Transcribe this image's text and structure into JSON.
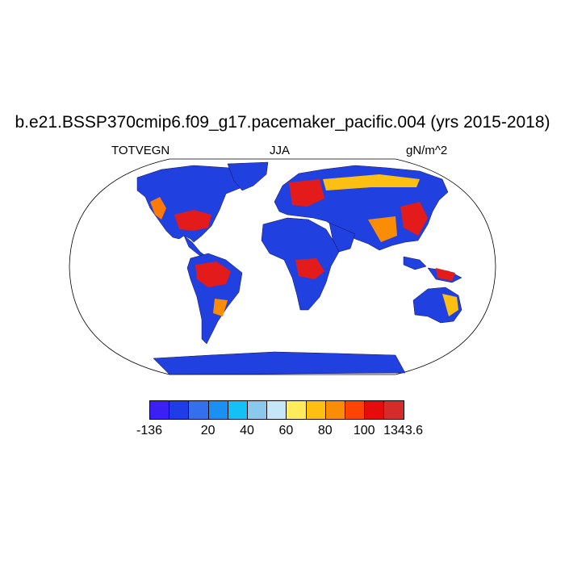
{
  "title": "b.e21.BSSP370cmip6.f09_g17.pacemaker_pacific.004 (yrs 2015-2018)",
  "subtitle_left": "TOTVEGN",
  "subtitle_center": "JJA",
  "subtitle_right": "gN/m^2",
  "map": {
    "projection": "Robinson",
    "ocean_color": "#ffffff",
    "land_base_color": "#2140e0"
  },
  "colorbar": {
    "colors": [
      "#3b1ff5",
      "#1f3de6",
      "#3470ec",
      "#1a91f2",
      "#14c0f5",
      "#8ac8ec",
      "#c4e6f7",
      "#ffec5a",
      "#fdbf12",
      "#fb8c05",
      "#fd4404",
      "#e60c0c",
      "#d62b2b"
    ],
    "labels": [
      {
        "text": "-136",
        "boundary": 0
      },
      {
        "text": "20",
        "boundary": 3
      },
      {
        "text": "40",
        "boundary": 5
      },
      {
        "text": "60",
        "boundary": 7
      },
      {
        "text": "80",
        "boundary": 9
      },
      {
        "text": "100",
        "boundary": 11
      },
      {
        "text": "1343.6",
        "boundary": 13
      }
    ]
  }
}
